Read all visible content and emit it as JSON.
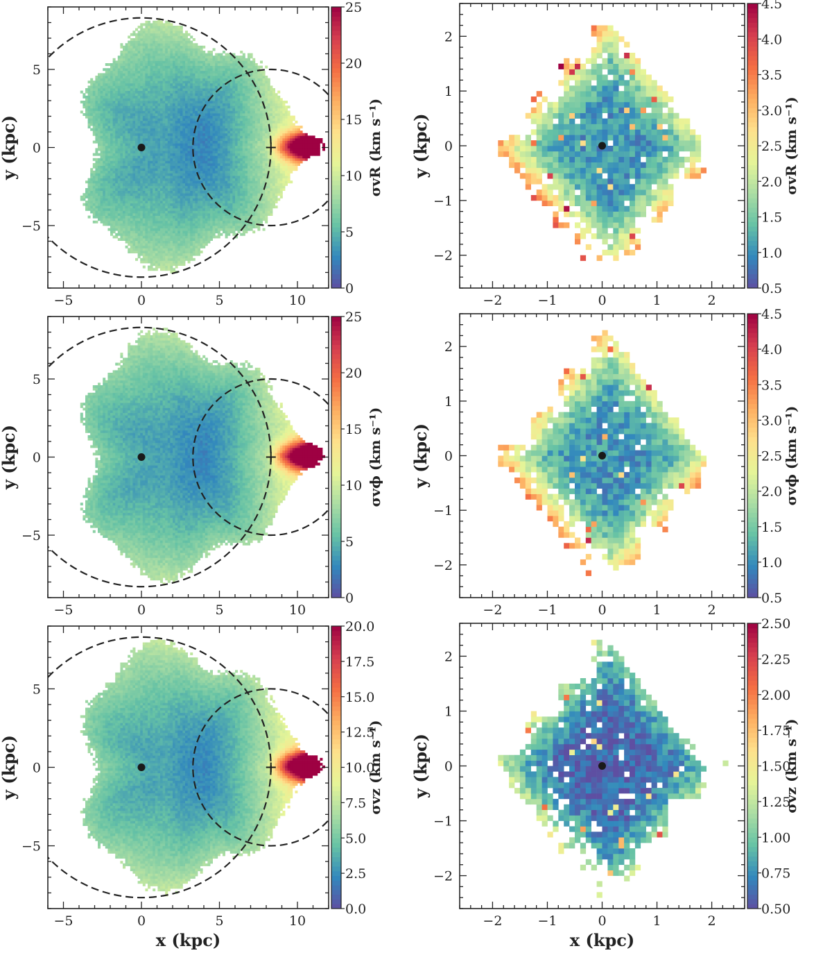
{
  "figure": {
    "colormap": [
      "#5e4fa2",
      "#3288bd",
      "#66c2a5",
      "#abdda4",
      "#e6f598",
      "#fee08b",
      "#fdae61",
      "#f46d43",
      "#d53e4f",
      "#9e0142"
    ],
    "marker_color": "#1a1a1a",
    "circle_color": "#222222"
  },
  "chart_data": [
    {
      "id": "panel-large-vR",
      "type": "heatmap",
      "xlabel": "",
      "ylabel": "y (kpc)",
      "xlim": [
        -6,
        12
      ],
      "ylim": [
        -9,
        9
      ],
      "xticks": [
        "−5",
        "0",
        "5",
        "10"
      ],
      "xtick_values": [
        -5,
        0,
        5,
        10
      ],
      "yticks": [
        "−5",
        "0",
        "5"
      ],
      "ytick_values": [
        -5,
        0,
        5
      ],
      "colorbar": {
        "label": "σvR (km s⁻¹)",
        "range": [
          0,
          25
        ],
        "ticks": [
          "0",
          "5",
          "10",
          "15",
          "20",
          "25"
        ],
        "tick_values": [
          0,
          5,
          10,
          15,
          20,
          25
        ]
      },
      "galactic_center": [
        0,
        0
      ],
      "sun_position": [
        8.3,
        0
      ],
      "circles": [
        {
          "center": [
            0,
            0
          ],
          "radius": 8.3
        },
        {
          "center": [
            8.3,
            0
          ],
          "radius": 5
        }
      ]
    },
    {
      "id": "panel-zoom-vR",
      "type": "heatmap",
      "xlabel": "",
      "ylabel": "y (kpc)",
      "xlim": [
        -2.6,
        2.6
      ],
      "ylim": [
        -2.6,
        2.6
      ],
      "xticks": [
        "−2",
        "−1",
        "0",
        "1",
        "2"
      ],
      "xtick_values": [
        -2,
        -1,
        0,
        1,
        2
      ],
      "yticks": [
        "−2",
        "−1",
        "0",
        "1",
        "2"
      ],
      "ytick_values": [
        -2,
        -1,
        0,
        1,
        2
      ],
      "colorbar": {
        "label": "σvR (km s⁻¹)",
        "range": [
          0.5,
          4.5
        ],
        "ticks": [
          "0.5",
          "1.0",
          "1.5",
          "2.0",
          "2.5",
          "3.0",
          "3.5",
          "4.0",
          "4.5"
        ],
        "tick_values": [
          0.5,
          1.0,
          1.5,
          2.0,
          2.5,
          3.0,
          3.5,
          4.0,
          4.5
        ]
      },
      "galactic_center": [
        0,
        0
      ]
    },
    {
      "id": "panel-large-vphi",
      "type": "heatmap",
      "xlabel": "",
      "ylabel": "y (kpc)",
      "xlim": [
        -6,
        12
      ],
      "ylim": [
        -9,
        9
      ],
      "xticks": [
        "−5",
        "0",
        "5",
        "10"
      ],
      "xtick_values": [
        -5,
        0,
        5,
        10
      ],
      "yticks": [
        "−5",
        "0",
        "5"
      ],
      "ytick_values": [
        -5,
        0,
        5
      ],
      "colorbar": {
        "label": "σvϕ (km s⁻¹)",
        "range": [
          0,
          25
        ],
        "ticks": [
          "0",
          "5",
          "10",
          "15",
          "20",
          "25"
        ],
        "tick_values": [
          0,
          5,
          10,
          15,
          20,
          25
        ]
      },
      "galactic_center": [
        0,
        0
      ],
      "sun_position": [
        8.3,
        0
      ],
      "circles": [
        {
          "center": [
            0,
            0
          ],
          "radius": 8.3
        },
        {
          "center": [
            8.3,
            0
          ],
          "radius": 5
        }
      ]
    },
    {
      "id": "panel-zoom-vphi",
      "type": "heatmap",
      "xlabel": "",
      "ylabel": "y (kpc)",
      "xlim": [
        -2.6,
        2.6
      ],
      "ylim": [
        -2.6,
        2.6
      ],
      "xticks": [
        "−2",
        "−1",
        "0",
        "1",
        "2"
      ],
      "xtick_values": [
        -2,
        -1,
        0,
        1,
        2
      ],
      "yticks": [
        "−2",
        "−1",
        "0",
        "1",
        "2"
      ],
      "ytick_values": [
        -2,
        -1,
        0,
        1,
        2
      ],
      "colorbar": {
        "label": "σvϕ (km s⁻¹)",
        "range": [
          0.5,
          4.5
        ],
        "ticks": [
          "0.5",
          "1.0",
          "1.5",
          "2.0",
          "2.5",
          "3.0",
          "3.5",
          "4.0",
          "4.5"
        ],
        "tick_values": [
          0.5,
          1.0,
          1.5,
          2.0,
          2.5,
          3.0,
          3.5,
          4.0,
          4.5
        ]
      },
      "galactic_center": [
        0,
        0
      ]
    },
    {
      "id": "panel-large-vz",
      "type": "heatmap",
      "xlabel": "x (kpc)",
      "ylabel": "y (kpc)",
      "xlim": [
        -6,
        12
      ],
      "ylim": [
        -9,
        9
      ],
      "xticks": [
        "−5",
        "0",
        "5",
        "10"
      ],
      "xtick_values": [
        -5,
        0,
        5,
        10
      ],
      "yticks": [
        "−5",
        "0",
        "5"
      ],
      "ytick_values": [
        -5,
        0,
        5
      ],
      "colorbar": {
        "label": "σvz (km s⁻¹)",
        "range": [
          0,
          20
        ],
        "ticks": [
          "0.0",
          "2.5",
          "5.0",
          "7.5",
          "10.0",
          "12.5",
          "15.0",
          "17.5",
          "20.0"
        ],
        "tick_values": [
          0,
          2.5,
          5,
          7.5,
          10,
          12.5,
          15,
          17.5,
          20
        ]
      },
      "galactic_center": [
        0,
        0
      ],
      "sun_position": [
        8.3,
        0
      ],
      "circles": [
        {
          "center": [
            0,
            0
          ],
          "radius": 8.3
        },
        {
          "center": [
            8.3,
            0
          ],
          "radius": 5
        }
      ]
    },
    {
      "id": "panel-zoom-vz",
      "type": "heatmap",
      "xlabel": "x (kpc)",
      "ylabel": "y (kpc)",
      "xlim": [
        -2.6,
        2.6
      ],
      "ylim": [
        -2.6,
        2.6
      ],
      "xticks": [
        "−2",
        "−1",
        "0",
        "1",
        "2"
      ],
      "xtick_values": [
        -2,
        -1,
        0,
        1,
        2
      ],
      "yticks": [
        "−2",
        "−1",
        "0",
        "1",
        "2"
      ],
      "ytick_values": [
        -2,
        -1,
        0,
        1,
        2
      ],
      "colorbar": {
        "label": "σvz (km s⁻¹)",
        "range": [
          0.5,
          2.5
        ],
        "ticks": [
          "0.50",
          "0.75",
          "1.00",
          "1.25",
          "1.50",
          "1.75",
          "2.00",
          "2.25",
          "2.50"
        ],
        "tick_values": [
          0.5,
          0.75,
          1.0,
          1.25,
          1.5,
          1.75,
          2.0,
          2.25,
          2.5
        ]
      },
      "galactic_center": [
        0,
        0
      ]
    }
  ]
}
